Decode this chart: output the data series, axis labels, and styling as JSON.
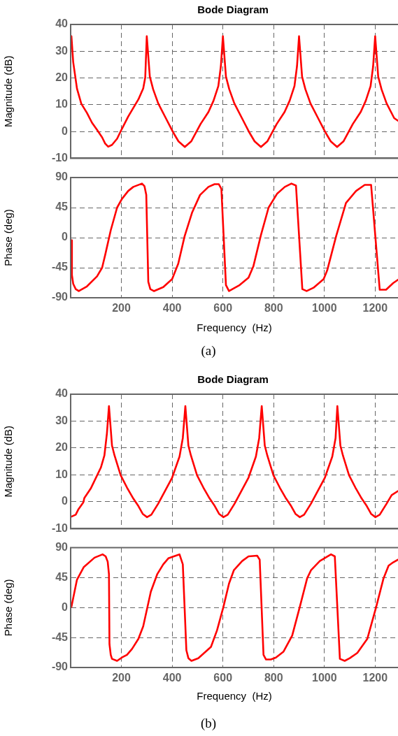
{
  "chart_data": [
    {
      "type": "line",
      "title": "Bode Diagram",
      "ylabel": "Magnitude (dB)",
      "xlim": [
        0,
        1290
      ],
      "xticks": [
        200,
        400,
        600,
        800,
        1000,
        1200
      ],
      "ylim": [
        -10,
        40
      ],
      "yticks": [
        -10,
        0,
        10,
        20,
        30,
        40
      ],
      "grid": true,
      "tick_labels": "y",
      "color": "#ff0000",
      "x": [
        3,
        10,
        25,
        42,
        64,
        84,
        104,
        124,
        136,
        148,
        163,
        183,
        202,
        227,
        267,
        286,
        294,
        300,
        312,
        325,
        345,
        375,
        405,
        425,
        450,
        475,
        512,
        543,
        563,
        582,
        592,
        600,
        612,
        625,
        645,
        675,
        705,
        725,
        750,
        775,
        812,
        843,
        863,
        882,
        892,
        900,
        912,
        925,
        945,
        975,
        1005,
        1025,
        1050,
        1075,
        1112,
        1143,
        1163,
        1182,
        1192,
        1200,
        1212,
        1225,
        1245,
        1275,
        1290
      ],
      "values": [
        35.6,
        26,
        16,
        10.4,
        7,
        3.3,
        0.6,
        -2.2,
        -4.5,
        -5.7,
        -5,
        -2.7,
        1,
        5.6,
        12,
        16.1,
        20.2,
        35.6,
        20.5,
        15.8,
        10.5,
        5,
        -0.5,
        -3.7,
        -5.8,
        -3.7,
        2.8,
        7.3,
        11.5,
        17,
        24.4,
        35.6,
        20.5,
        15.8,
        10.5,
        5,
        -0.5,
        -3.7,
        -5.8,
        -3.7,
        2.8,
        7.3,
        11.5,
        17,
        24.4,
        35.6,
        20.5,
        15.8,
        10.5,
        5,
        -0.5,
        -3.7,
        -5.8,
        -3.7,
        2.8,
        7.3,
        11.5,
        17,
        24.4,
        35.6,
        20.5,
        15.8,
        10.5,
        5,
        4
      ]
    },
    {
      "type": "line",
      "ylabel": "Phase (deg)",
      "xlabel": "Frequency  (Hz)",
      "annotations": [
        "(a)"
      ],
      "xlim": [
        0,
        1290
      ],
      "xticks": [
        200,
        400,
        600,
        800,
        1000,
        1200
      ],
      "ylim": [
        -90,
        90
      ],
      "yticks": [
        -90,
        -45,
        0,
        45,
        90
      ],
      "grid": true,
      "color": "#ff0000",
      "x": [
        3,
        5,
        10,
        20,
        32,
        64,
        104,
        124,
        136,
        158,
        183,
        202,
        227,
        247,
        281,
        291,
        298,
        306,
        314,
        328,
        365,
        400,
        424,
        449,
        479,
        510,
        543,
        567,
        584,
        594,
        612,
        624,
        666,
        701,
        720,
        750,
        780,
        814,
        844,
        870,
        888,
        913,
        930,
        957,
        997,
        1011,
        1046,
        1085,
        1125,
        1159,
        1184,
        1218,
        1243,
        1271,
        1290
      ],
      "values": [
        -4,
        -56,
        -69,
        -77,
        -80,
        -73,
        -58,
        -45,
        -26,
        11,
        45,
        58,
        70,
        76,
        81,
        77,
        64,
        -66,
        -77,
        -80,
        -74,
        -62,
        -39,
        2,
        38,
        64,
        76,
        80,
        80,
        73,
        -71,
        -80,
        -71,
        -60,
        -43,
        4,
        45,
        66,
        76,
        81,
        78,
        -77,
        -80,
        -75,
        -62,
        -49,
        2,
        52,
        70,
        79,
        79,
        -78,
        -78,
        -68,
        -63
      ]
    },
    {
      "type": "line",
      "title": "Bode Diagram",
      "ylabel": "Magnitude (dB)",
      "xlim": [
        0,
        1290
      ],
      "xticks": [
        200,
        400,
        600,
        800,
        1000,
        1200
      ],
      "ylim": [
        -10,
        40
      ],
      "yticks": [
        -10,
        0,
        10,
        20,
        30,
        40
      ],
      "grid": true,
      "tick_labels": "y",
      "color": "#ff0000",
      "x": [
        3,
        20,
        30,
        50,
        54,
        79,
        119,
        133,
        143,
        151,
        163,
        173,
        197,
        222,
        247,
        267,
        284,
        301,
        318,
        345,
        400,
        429,
        442,
        452,
        464,
        474,
        498,
        523,
        548,
        568,
        585,
        602,
        619,
        646,
        701,
        730,
        743,
        753,
        765,
        775,
        799,
        824,
        849,
        869,
        886,
        903,
        920,
        947,
        1002,
        1031,
        1044,
        1051,
        1063,
        1073,
        1097,
        1122,
        1147,
        1167,
        1184,
        1201,
        1218,
        1245,
        1265,
        1290
      ],
      "values": [
        -5.5,
        -4.8,
        -2.9,
        -0.2,
        1.4,
        4.9,
        12.7,
        17.2,
        25.5,
        35.6,
        20.9,
        17.2,
        9.9,
        5.3,
        1.2,
        -1.6,
        -4.5,
        -5.7,
        -4.8,
        -0.7,
        9,
        16.8,
        23.7,
        35.6,
        20.9,
        17.2,
        9.9,
        5.3,
        1.2,
        -1.6,
        -4.5,
        -5.7,
        -4.8,
        -0.7,
        9,
        16.8,
        23.7,
        35.6,
        20.9,
        17.2,
        9.9,
        5.3,
        1.2,
        -1.6,
        -4.5,
        -5.7,
        -4.8,
        -0.7,
        9,
        16.8,
        23.7,
        35.6,
        20.9,
        17.2,
        9.9,
        5.3,
        1.2,
        -1.6,
        -4.5,
        -5.7,
        -4.8,
        -0.7,
        2.5,
        4
      ]
    },
    {
      "type": "line",
      "ylabel": "Phase (deg)",
      "xlabel": "Frequency  (Hz)",
      "annotations": [
        "(b)"
      ],
      "xlim": [
        0,
        1290
      ],
      "xticks": [
        200,
        400,
        600,
        800,
        1000,
        1200
      ],
      "ylim": [
        -90,
        90
      ],
      "yticks": [
        -90,
        -45,
        0,
        45,
        90
      ],
      "grid": true,
      "color": "#ff0000",
      "x": [
        3,
        12,
        25,
        52,
        94,
        126,
        138,
        146,
        151,
        153,
        158,
        163,
        183,
        202,
        222,
        242,
        267,
        286,
        316,
        341,
        365,
        385,
        429,
        442,
        456,
        464,
        476,
        503,
        553,
        577,
        602,
        624,
        643,
        676,
        701,
        735,
        745,
        760,
        770,
        789,
        809,
        839,
        873,
        903,
        932,
        947,
        982,
        1026,
        1041,
        1061,
        1080,
        1100,
        1130,
        1169,
        1204,
        1233,
        1253,
        1271,
        1290
      ],
      "values": [
        1,
        18,
        42,
        61,
        75,
        80,
        77,
        69,
        50,
        -55,
        -71,
        -77,
        -80,
        -75,
        -71,
        -62,
        -47,
        -28,
        24,
        50,
        65,
        74,
        80,
        65,
        -64,
        -76,
        -80,
        -76,
        -59,
        -34,
        1,
        36,
        56,
        70,
        77,
        78,
        72,
        -71,
        -78,
        -78,
        -75,
        -66,
        -42,
        1,
        44,
        56,
        70,
        80,
        77,
        -77,
        -80,
        -76,
        -68,
        -47,
        1,
        44,
        63,
        68,
        72
      ]
    }
  ]
}
